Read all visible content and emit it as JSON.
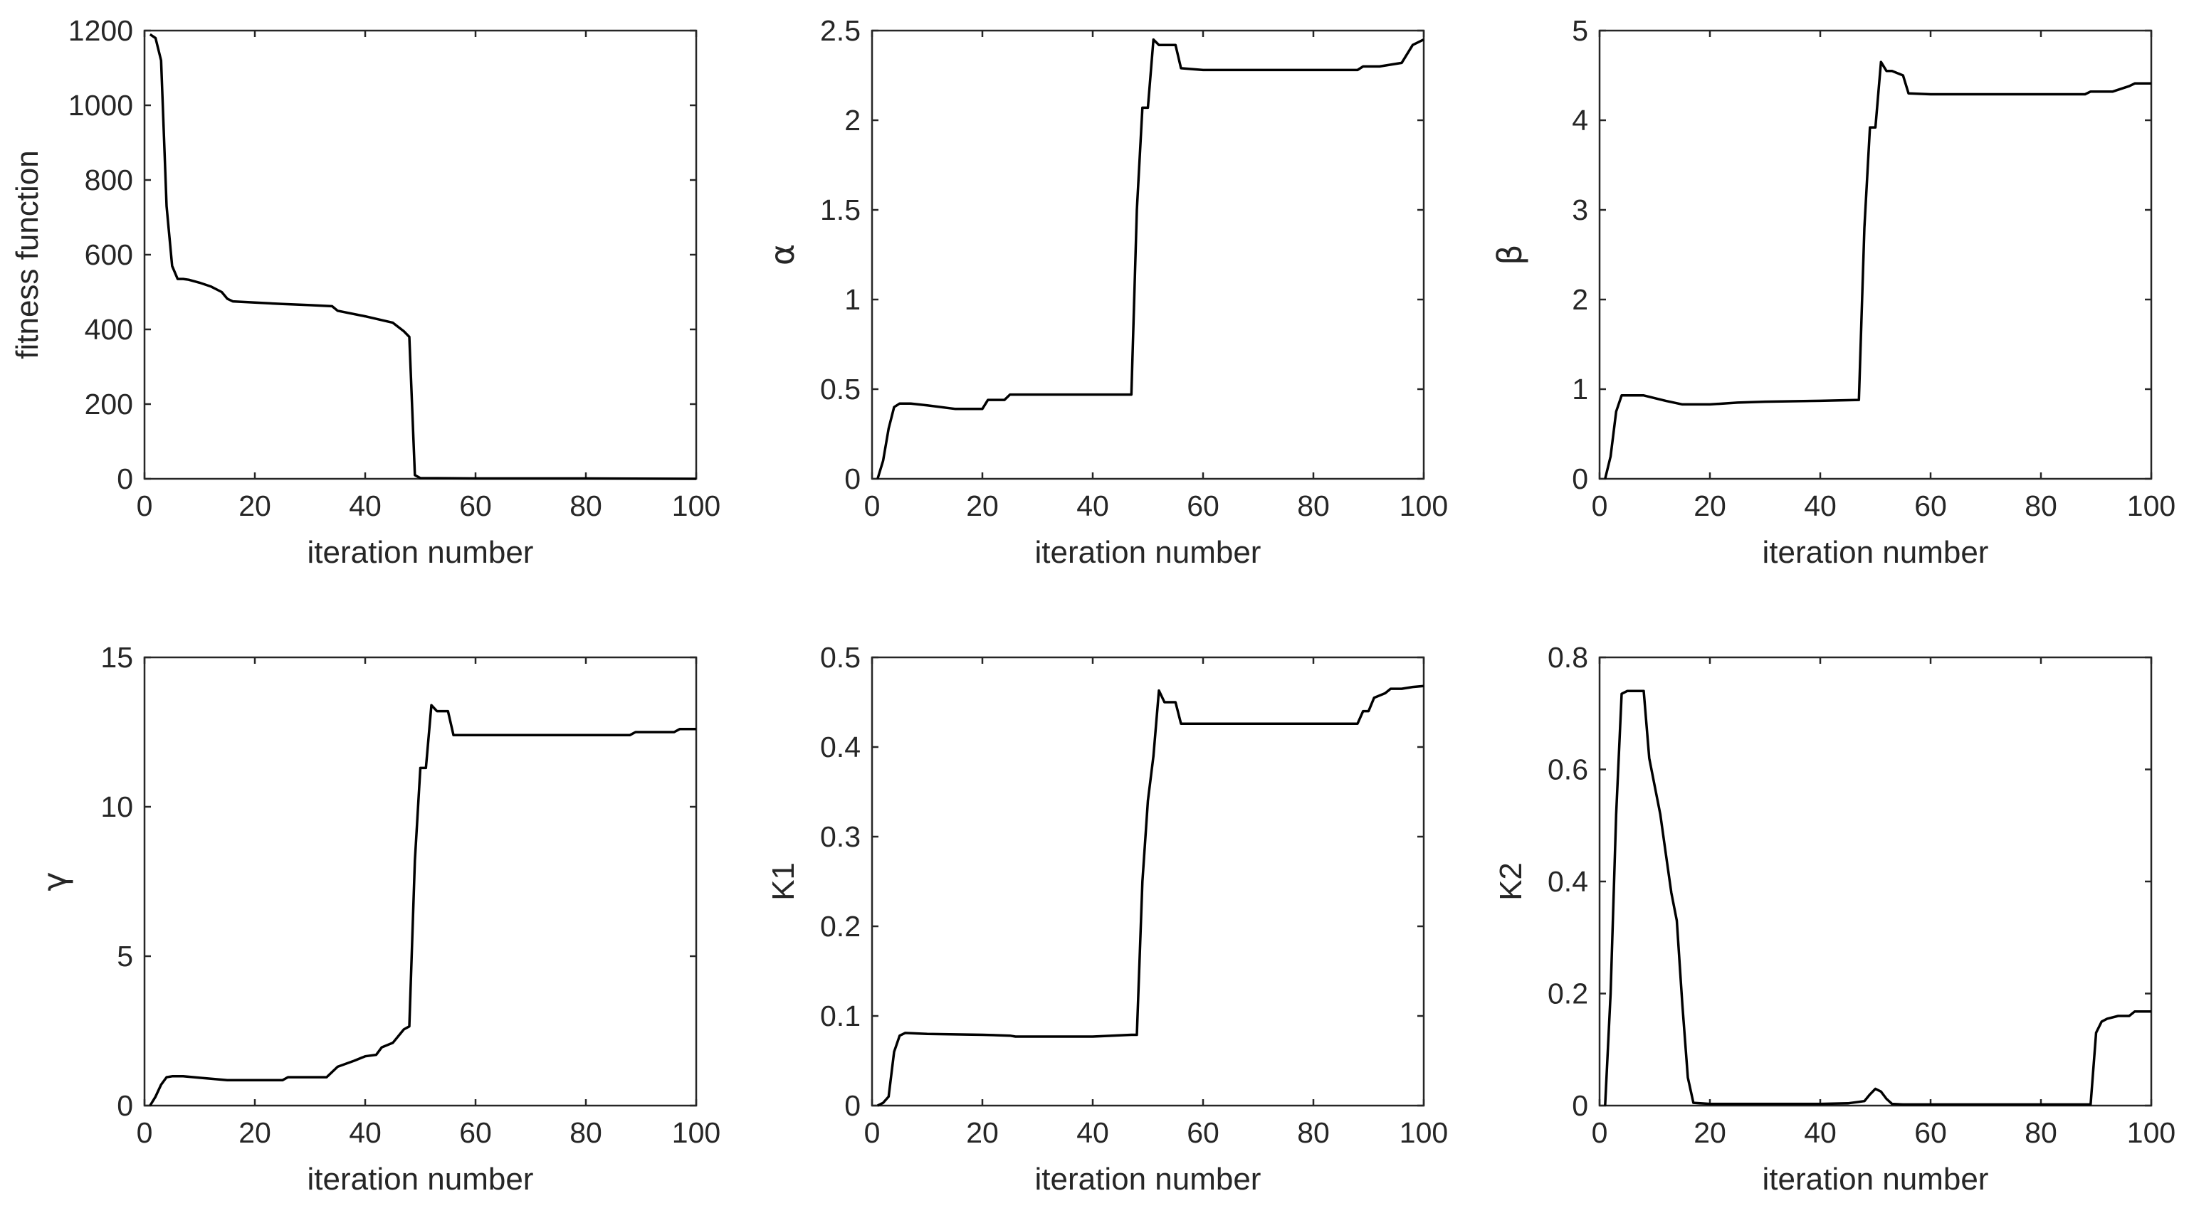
{
  "chart_data": [
    {
      "type": "line",
      "title": "",
      "xlabel": "iteration number",
      "ylabel": "fitness function",
      "xlim": [
        0,
        100
      ],
      "ylim": [
        0,
        1200
      ],
      "xticks": [
        0,
        20,
        40,
        60,
        80,
        100
      ],
      "yticks": [
        0,
        200,
        400,
        600,
        800,
        1000,
        1200
      ],
      "ytick_labels": [
        "0",
        "200",
        "400",
        "600",
        "800",
        "1000",
        "1200"
      ],
      "grid": false,
      "series": [
        {
          "color": "#000000",
          "x": [
            1,
            2,
            3,
            4,
            5,
            6,
            7,
            8,
            10,
            12,
            14,
            15,
            16,
            20,
            25,
            30,
            34,
            35,
            40,
            45,
            47,
            48,
            49,
            50,
            60,
            80,
            100
          ],
          "y": [
            1190,
            1180,
            1120,
            730,
            570,
            535,
            535,
            533,
            525,
            515,
            500,
            482,
            475,
            472,
            468,
            465,
            462,
            450,
            435,
            418,
            395,
            380,
            10,
            2,
            1,
            1,
            0
          ]
        }
      ]
    },
    {
      "type": "line",
      "title": "",
      "xlabel": "iteration number",
      "ylabel": "α",
      "xlim": [
        0,
        100
      ],
      "ylim": [
        0,
        2.5
      ],
      "xticks": [
        0,
        20,
        40,
        60,
        80,
        100
      ],
      "yticks": [
        0,
        0.5,
        1,
        1.5,
        2,
        2.5
      ],
      "ytick_labels": [
        "0",
        "0.5",
        "1",
        "1.5",
        "2",
        "2.5"
      ],
      "grid": false,
      "series": [
        {
          "color": "#000000",
          "x": [
            1,
            2,
            3,
            4,
            5,
            7,
            10,
            15,
            20,
            21,
            24,
            25,
            30,
            40,
            47,
            48,
            49,
            50,
            51,
            52,
            53,
            55,
            56,
            60,
            88,
            89,
            92,
            96,
            98,
            100
          ],
          "y": [
            0,
            0.1,
            0.28,
            0.4,
            0.42,
            0.42,
            0.41,
            0.39,
            0.39,
            0.44,
            0.44,
            0.47,
            0.47,
            0.47,
            0.47,
            1.5,
            2.07,
            2.07,
            2.45,
            2.42,
            2.42,
            2.42,
            2.29,
            2.28,
            2.28,
            2.3,
            2.3,
            2.32,
            2.42,
            2.45
          ]
        }
      ]
    },
    {
      "type": "line",
      "title": "",
      "xlabel": "iteration number",
      "ylabel": "β",
      "xlim": [
        0,
        100
      ],
      "ylim": [
        0,
        5
      ],
      "xticks": [
        0,
        20,
        40,
        60,
        80,
        100
      ],
      "yticks": [
        0,
        1,
        2,
        3,
        4,
        5
      ],
      "ytick_labels": [
        "0",
        "1",
        "2",
        "3",
        "4",
        "5"
      ],
      "grid": false,
      "series": [
        {
          "color": "#000000",
          "x": [
            1,
            2,
            3,
            4,
            6,
            8,
            12,
            15,
            20,
            25,
            30,
            40,
            47,
            48,
            49,
            50,
            51,
            52,
            53,
            55,
            56,
            60,
            88,
            89,
            93,
            96,
            97,
            100
          ],
          "y": [
            0,
            0.25,
            0.75,
            0.93,
            0.93,
            0.93,
            0.87,
            0.83,
            0.83,
            0.85,
            0.86,
            0.87,
            0.88,
            2.8,
            3.92,
            3.92,
            4.65,
            4.55,
            4.55,
            4.5,
            4.3,
            4.29,
            4.29,
            4.32,
            4.32,
            4.38,
            4.41,
            4.41
          ]
        }
      ]
    },
    {
      "type": "line",
      "title": "",
      "xlabel": "iteration number",
      "ylabel": "γ",
      "xlim": [
        0,
        100
      ],
      "ylim": [
        0,
        15
      ],
      "xticks": [
        0,
        20,
        40,
        60,
        80,
        100
      ],
      "yticks": [
        0,
        5,
        10,
        15
      ],
      "ytick_labels": [
        "0",
        "5",
        "10",
        "15"
      ],
      "grid": false,
      "series": [
        {
          "color": "#000000",
          "x": [
            1,
            2,
            3,
            4,
            5,
            7,
            10,
            15,
            20,
            25,
            26,
            30,
            33,
            35,
            38,
            40,
            42,
            43,
            45,
            47,
            48,
            49,
            50,
            51,
            52,
            53,
            55,
            56,
            60,
            80,
            88,
            89,
            92,
            96,
            97,
            100
          ],
          "y": [
            0,
            0.3,
            0.7,
            0.95,
            0.98,
            0.98,
            0.93,
            0.85,
            0.85,
            0.85,
            0.95,
            0.95,
            0.95,
            1.3,
            1.5,
            1.65,
            1.7,
            1.95,
            2.1,
            2.55,
            2.65,
            8.2,
            11.3,
            11.3,
            13.4,
            13.2,
            13.2,
            12.4,
            12.4,
            12.4,
            12.4,
            12.5,
            12.5,
            12.5,
            12.6,
            12.6
          ]
        }
      ]
    },
    {
      "type": "line",
      "title": "",
      "xlabel": "iteration number",
      "ylabel": "K1",
      "xlim": [
        0,
        100
      ],
      "ylim": [
        0,
        0.5
      ],
      "xticks": [
        0,
        20,
        40,
        60,
        80,
        100
      ],
      "yticks": [
        0,
        0.1,
        0.2,
        0.3,
        0.4,
        0.5
      ],
      "ytick_labels": [
        "0",
        "0.1",
        "0.2",
        "0.3",
        "0.4",
        "0.5"
      ],
      "grid": false,
      "series": [
        {
          "color": "#000000",
          "x": [
            1,
            2,
            3,
            4,
            5,
            6,
            10,
            20,
            25,
            26,
            30,
            40,
            47,
            48,
            49,
            50,
            51,
            52,
            53,
            55,
            56,
            60,
            80,
            88,
            89,
            90,
            91,
            93,
            94,
            96,
            98,
            100
          ],
          "y": [
            0,
            0.003,
            0.01,
            0.06,
            0.078,
            0.081,
            0.08,
            0.079,
            0.078,
            0.077,
            0.077,
            0.077,
            0.079,
            0.079,
            0.25,
            0.34,
            0.39,
            0.463,
            0.45,
            0.45,
            0.426,
            0.426,
            0.426,
            0.426,
            0.44,
            0.44,
            0.455,
            0.46,
            0.465,
            0.465,
            0.467,
            0.468
          ]
        }
      ]
    },
    {
      "type": "line",
      "title": "",
      "xlabel": "iteration number",
      "ylabel": "K2",
      "xlim": [
        0,
        100
      ],
      "ylim": [
        0,
        0.8
      ],
      "xticks": [
        0,
        20,
        40,
        60,
        80,
        100
      ],
      "yticks": [
        0,
        0.2,
        0.4,
        0.6,
        0.8
      ],
      "ytick_labels": [
        "0",
        "0.2",
        "0.4",
        "0.6",
        "0.8"
      ],
      "grid": false,
      "series": [
        {
          "color": "#000000",
          "x": [
            1,
            2,
            3,
            4,
            5,
            6,
            7,
            8,
            9,
            10,
            11,
            12,
            13,
            14,
            15,
            16,
            17,
            20,
            30,
            40,
            45,
            48,
            49,
            50,
            51,
            52,
            53,
            55,
            60,
            80,
            88,
            89,
            90,
            91,
            92,
            94,
            96,
            97,
            100
          ],
          "y": [
            0,
            0.2,
            0.52,
            0.735,
            0.74,
            0.74,
            0.74,
            0.74,
            0.62,
            0.57,
            0.52,
            0.45,
            0.38,
            0.33,
            0.18,
            0.05,
            0.005,
            0.003,
            0.003,
            0.003,
            0.004,
            0.008,
            0.02,
            0.03,
            0.025,
            0.012,
            0.003,
            0.002,
            0.002,
            0.002,
            0.002,
            0.002,
            0.13,
            0.15,
            0.155,
            0.16,
            0.16,
            0.168,
            0.168
          ]
        }
      ]
    }
  ]
}
